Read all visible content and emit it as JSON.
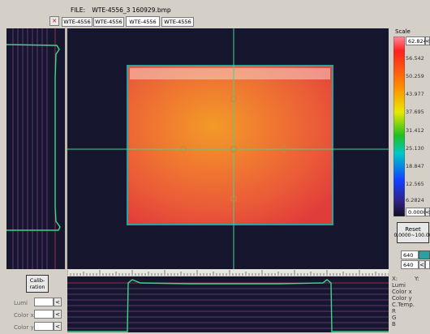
{
  "file": {
    "label": "FILE:",
    "name": "WTE-4556_3 160929.bmp"
  },
  "tabs": [
    "WTE-4556",
    "WTE-4556",
    "WTE-4556",
    "WTE-4556"
  ],
  "active_tab_index": 2,
  "scale": {
    "title": "Scale",
    "max_value": "62.824",
    "ticks": [
      "56.542",
      "50.259",
      "43.977",
      "37.695",
      "31.412",
      "25.130",
      "18.847",
      "12.565",
      "6.2824"
    ],
    "min_value": "0.0000",
    "reset_label": "Reset",
    "reset_range": "0.0000~100.00"
  },
  "resolution": {
    "width": "640",
    "height": "640"
  },
  "calibration_label": "Calib-\nration",
  "readouts": {
    "lumi": "Lumi",
    "color_x": "Color x",
    "color_y": "Color y"
  },
  "info_labels": [
    "X:",
    "Y:",
    "Lumi",
    "Color x",
    "Color y",
    "C.Temp.",
    "R",
    "G",
    "B"
  ],
  "colors": {
    "accent_green": "#3fd68a",
    "background_dark": "#16172e",
    "panel": "#d4d0c8"
  }
}
